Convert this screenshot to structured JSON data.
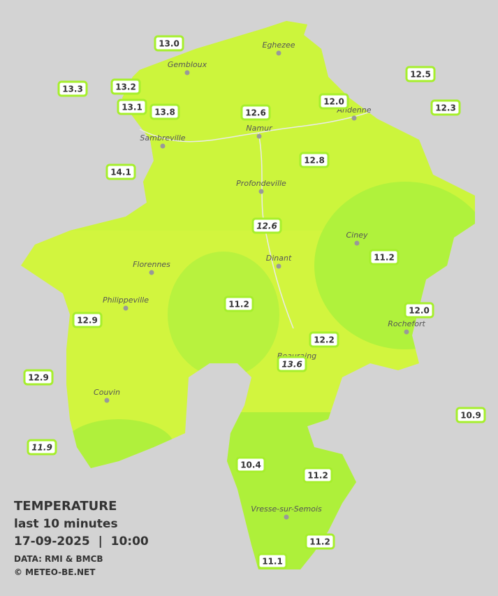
{
  "legend": {
    "title": "TEMPERATURE",
    "period": "last 10 minutes",
    "datetime": "17-09-2025  |  10:00",
    "source": "DATA: RMI & BMCB",
    "credit": "© METEO-BE.NET"
  },
  "cities": [
    "Eghezee",
    "Gembloux",
    "Andenne",
    "Namur",
    "Sambreville",
    "Profondeville",
    "Ciney",
    "Dinant",
    "Florennes",
    "Philippeville",
    "Rochefort",
    "Beauraing",
    "Couvin",
    "Vresse-sur-Semois"
  ],
  "stations": [
    "13.0",
    "13.3",
    "13.2",
    "13.1",
    "13.8",
    "12.6",
    "12.0",
    "12.5",
    "12.3",
    "14.1",
    "12.8",
    "12.6",
    "11.2",
    "11.2",
    "12.0",
    "12.9",
    "12.2",
    "13.6",
    "12.9",
    "10.9",
    "11.9",
    "10.4",
    "11.2",
    "11.2",
    "11.1"
  ]
}
